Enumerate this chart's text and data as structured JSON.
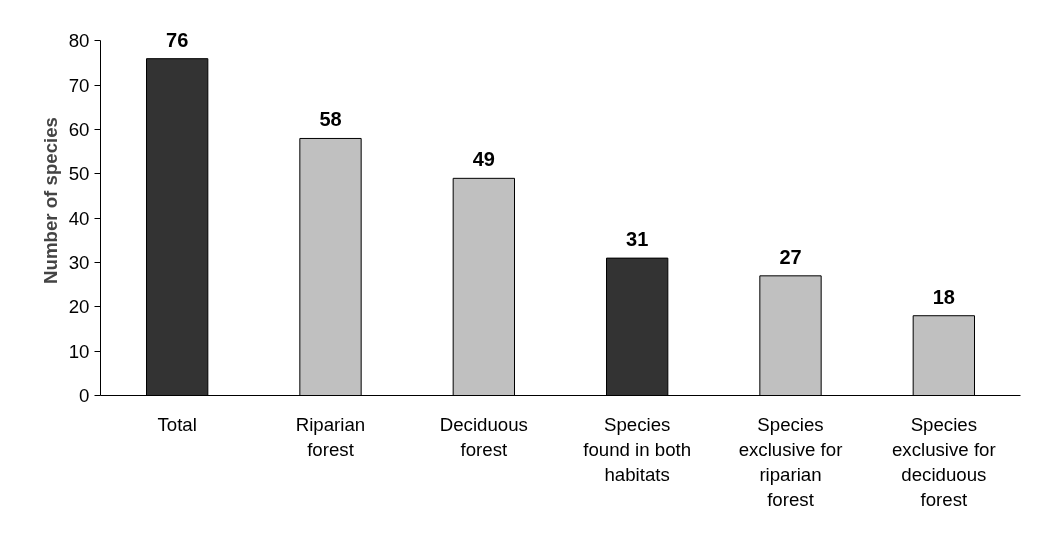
{
  "chart_data": {
    "type": "bar",
    "ylabel": "Number of species",
    "categories": [
      "Total",
      "Riparian\nforest",
      "Deciduous\nforest",
      "Species\nfound in both\nhabitats",
      "Species\nexclusive for\nriparian\nforest",
      "Species\nexclusive for\ndeciduous\nforest"
    ],
    "values": [
      76,
      58,
      49,
      31,
      27,
      18
    ],
    "colors": [
      "#333333",
      "#c0c0c0",
      "#c0c0c0",
      "#333333",
      "#c0c0c0",
      "#c0c0c0"
    ],
    "ylim": [
      0,
      80
    ],
    "yticks": [
      0,
      10,
      20,
      30,
      40,
      50,
      60,
      70,
      80
    ],
    "grid": false,
    "data_labels": true
  }
}
